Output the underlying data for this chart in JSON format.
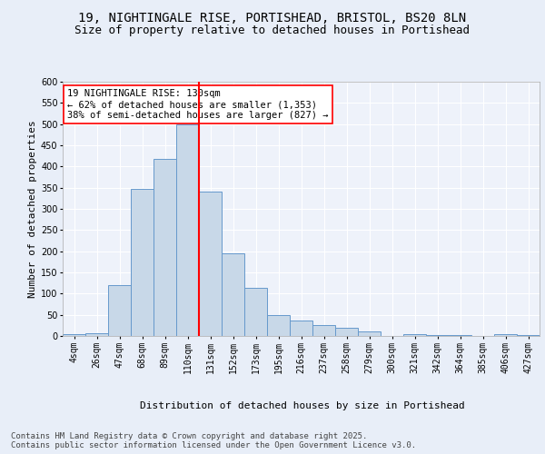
{
  "title_line1": "19, NIGHTINGALE RISE, PORTISHEAD, BRISTOL, BS20 8LN",
  "title_line2": "Size of property relative to detached houses in Portishead",
  "xlabel": "Distribution of detached houses by size in Portishead",
  "ylabel": "Number of detached properties",
  "footnote": "Contains HM Land Registry data © Crown copyright and database right 2025.\nContains public sector information licensed under the Open Government Licence v3.0.",
  "bar_labels": [
    "4sqm",
    "26sqm",
    "47sqm",
    "68sqm",
    "89sqm",
    "110sqm",
    "131sqm",
    "152sqm",
    "173sqm",
    "195sqm",
    "216sqm",
    "237sqm",
    "258sqm",
    "279sqm",
    "300sqm",
    "321sqm",
    "342sqm",
    "364sqm",
    "385sqm",
    "406sqm",
    "427sqm"
  ],
  "bar_values": [
    5,
    6,
    120,
    348,
    418,
    500,
    340,
    196,
    113,
    50,
    36,
    25,
    20,
    10,
    0,
    5,
    3,
    3,
    0,
    5,
    3
  ],
  "bar_color": "#c8d8e8",
  "bar_edge_color": "#6699cc",
  "vline_x": 5.5,
  "vline_color": "red",
  "annotation_text": "19 NIGHTINGALE RISE: 130sqm\n← 62% of detached houses are smaller (1,353)\n38% of semi-detached houses are larger (827) →",
  "annotation_box_color": "white",
  "annotation_box_edge": "red",
  "ylim": [
    0,
    600
  ],
  "yticks": [
    0,
    50,
    100,
    150,
    200,
    250,
    300,
    350,
    400,
    450,
    500,
    550,
    600
  ],
  "background_color": "#e8eef8",
  "plot_bg_color": "#eef2fa",
  "grid_color": "white",
  "title1_fontsize": 10,
  "title2_fontsize": 9,
  "xlabel_fontsize": 8,
  "ylabel_fontsize": 8,
  "tick_fontsize": 7,
  "annotation_fontsize": 7.5,
  "footnote_fontsize": 6.5
}
